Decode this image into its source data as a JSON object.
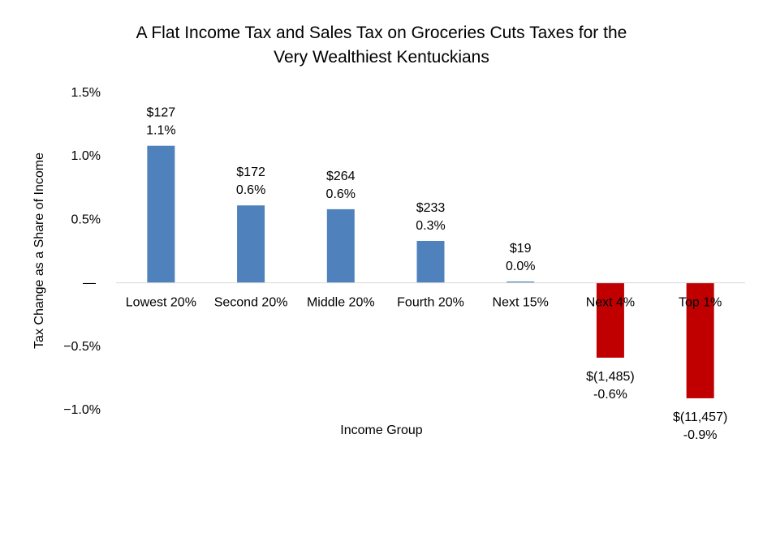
{
  "chart_data": {
    "type": "bar",
    "title_lines": [
      "A Flat Income Tax and Sales Tax on Groceries Cuts Taxes for the",
      "Very Wealthiest Kentuckians"
    ],
    "xlabel": "Income Group",
    "ylabel": "Tax Change as a Share of Income",
    "ylim": [
      -1.0,
      1.5
    ],
    "yticks": [
      {
        "value": 1.5,
        "label": "1.5%"
      },
      {
        "value": 1.0,
        "label": "1.0%"
      },
      {
        "value": 0.5,
        "label": "0.5%"
      },
      {
        "value": 0.0,
        "label": "—"
      },
      {
        "value": -0.5,
        "label": "−0.5%"
      },
      {
        "value": -1.0,
        "label": "−1.0%"
      }
    ],
    "categories": [
      "Lowest 20%",
      "Second 20%",
      "Middle 20%",
      "Fourth 20%",
      "Next 15%",
      "Next 4%",
      "Top 1%"
    ],
    "values": [
      1.08,
      0.61,
      0.58,
      0.33,
      0.01,
      -0.59,
      -0.91
    ],
    "dollar_labels": [
      "$127",
      "$172",
      "$264",
      "$233",
      "$19",
      "$(1,485)",
      "$(11,457)"
    ],
    "percent_labels": [
      "1.1%",
      "0.6%",
      "0.6%",
      "0.3%",
      "0.0%",
      "-0.6%",
      "-0.9%"
    ],
    "colors": {
      "positive": "#4F81BD",
      "negative": "#C00000",
      "axis": "#D9D9D9",
      "text": "#000000"
    },
    "grid": false,
    "legend": "none"
  }
}
